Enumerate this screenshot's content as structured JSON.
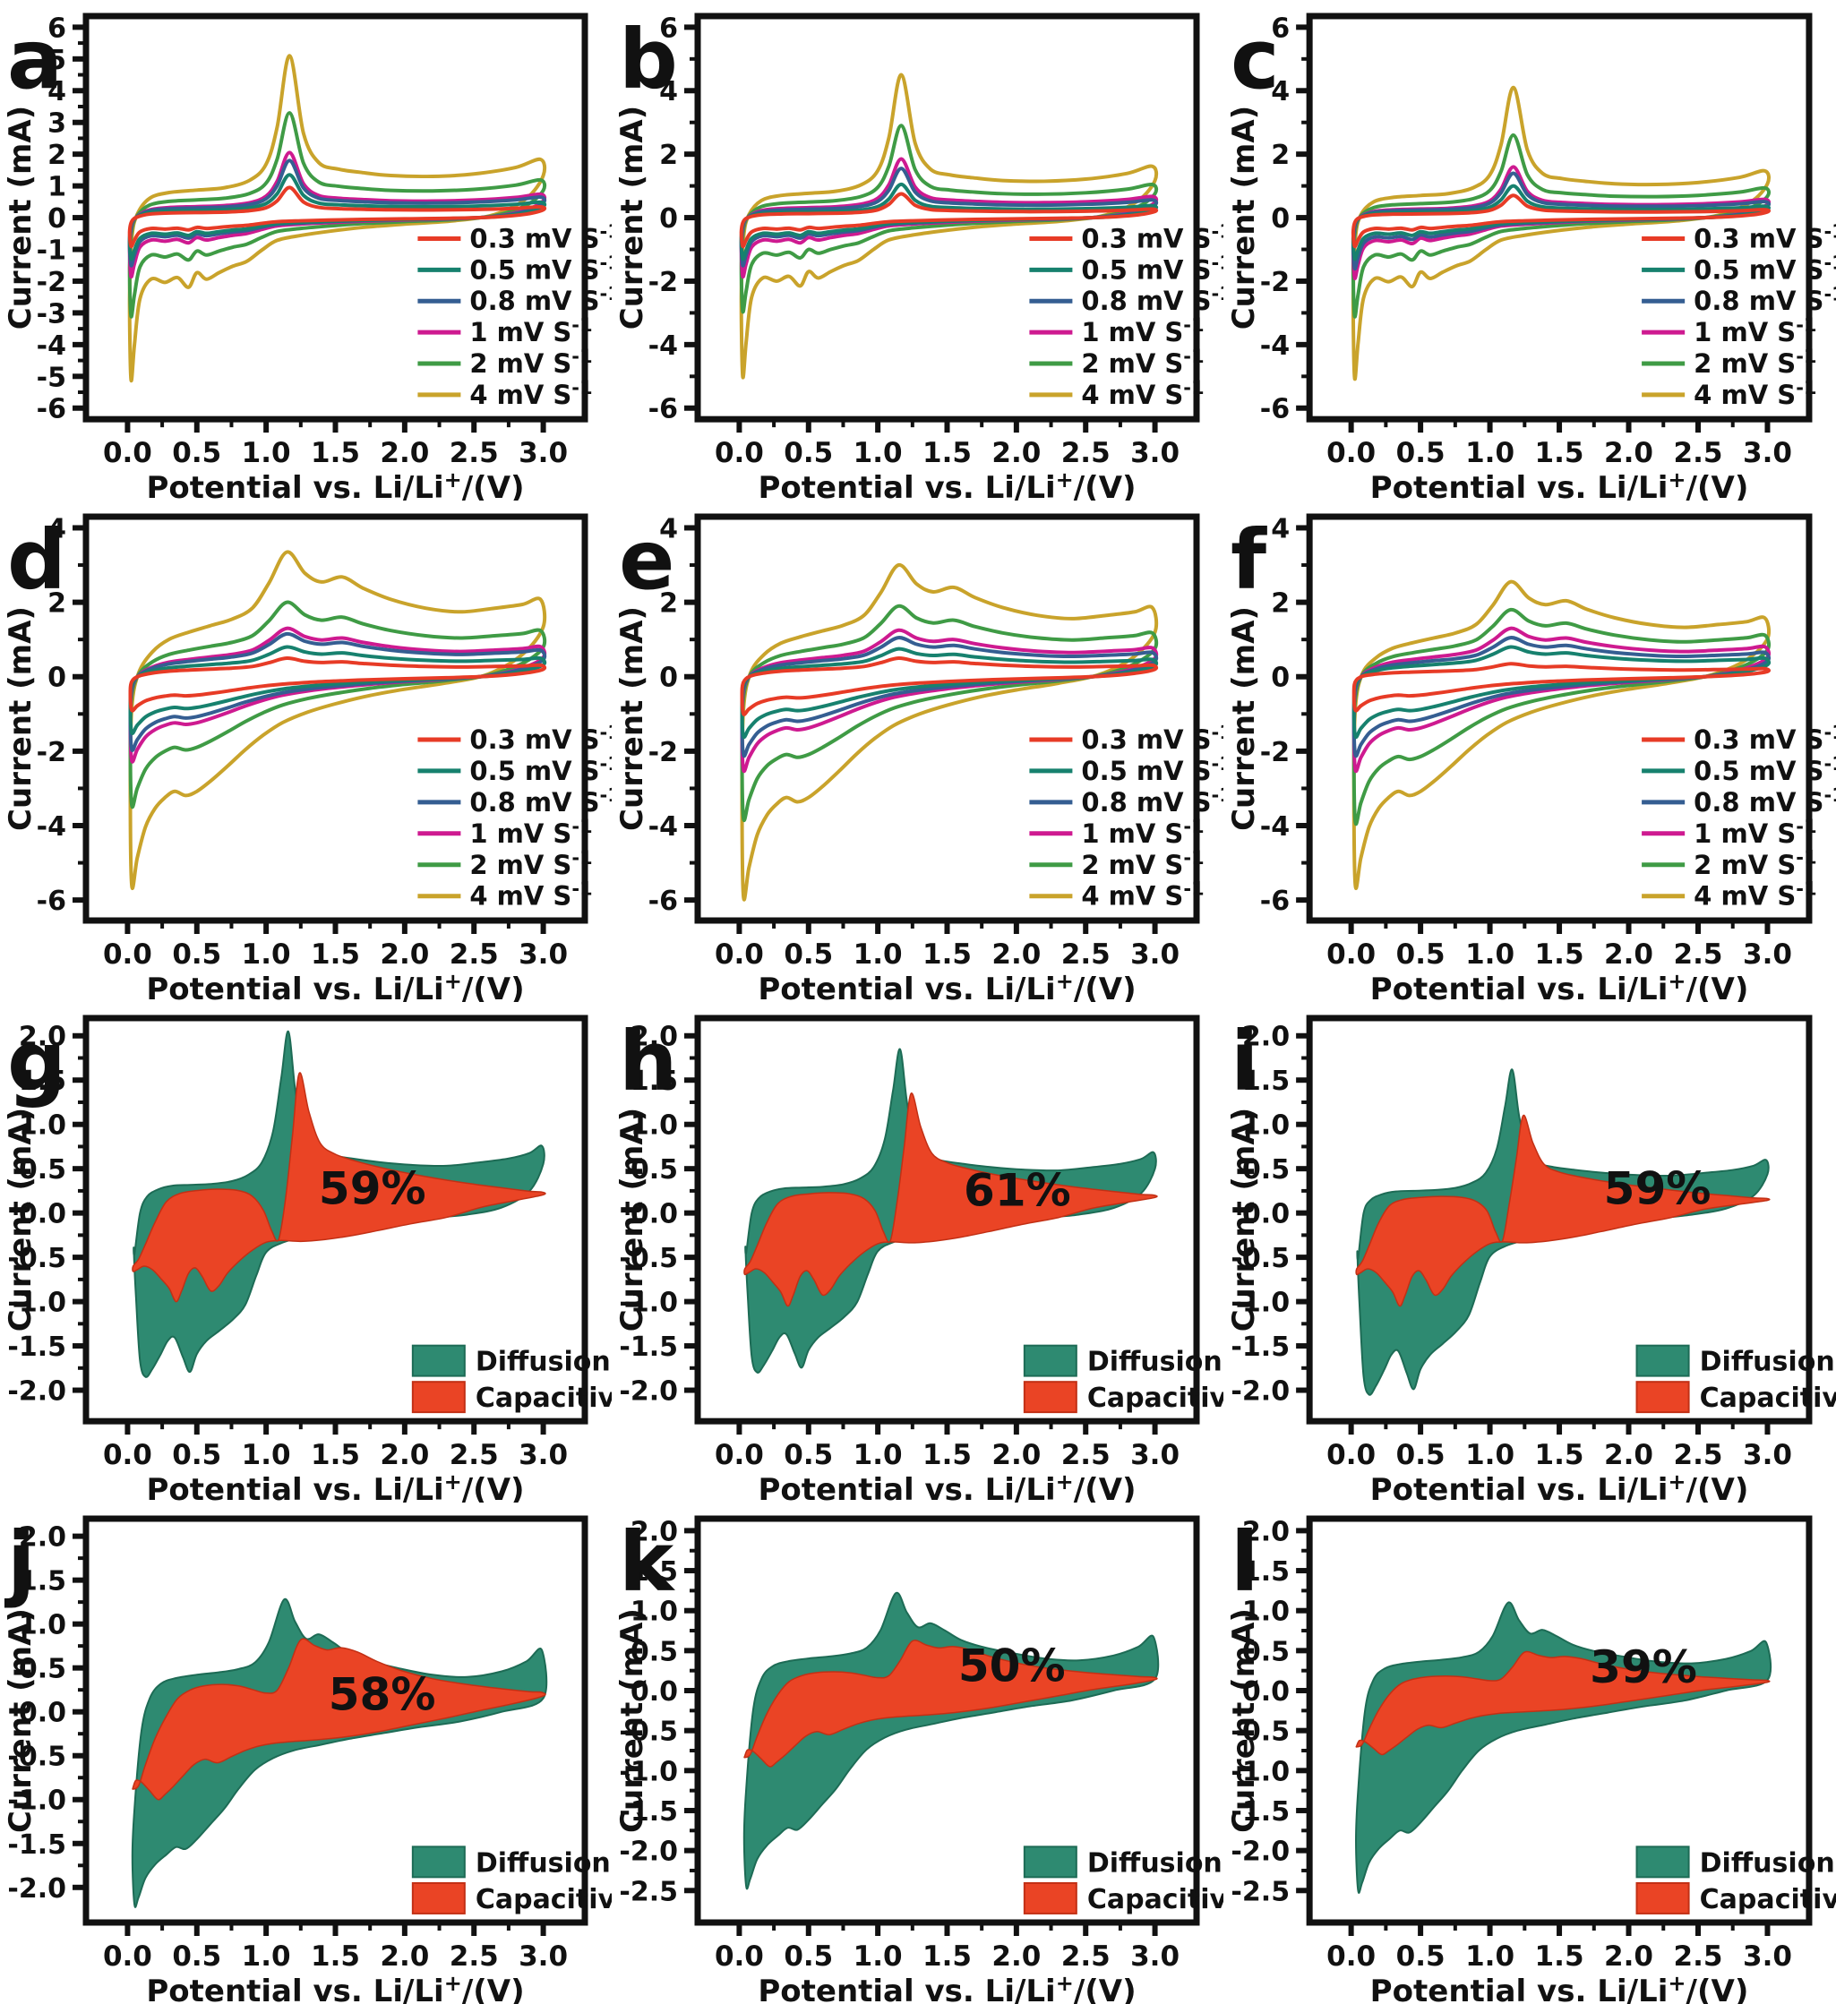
{
  "chart_data": {
    "type": "line",
    "axis": {
      "y_title": "Current (mA)",
      "x_title_parts": [
        "Potential vs. Li/Li",
        "+",
        "/(V)"
      ],
      "xlim": [
        0.0,
        3.0
      ]
    },
    "x_tick_labels": [
      "0.0",
      "0.5",
      "1.0",
      "1.5",
      "2.0",
      "2.5",
      "3.0"
    ],
    "scan_rate_legend_note": "scan rates in mV per second: 0.3, 0.5, 0.8, 1, 2, 4",
    "panels": [
      {
        "letter": "a",
        "type": "cv",
        "shape": "sharp",
        "ylim": [
          -6.35,
          6.35
        ],
        "y_ticks": [
          {
            "label": "6",
            "v": 6
          },
          {
            "label": "5",
            "v": 5
          },
          {
            "label": "4",
            "v": 4
          },
          {
            "label": "3",
            "v": 3
          },
          {
            "label": "2",
            "v": 2
          },
          {
            "label": "1",
            "v": 1
          },
          {
            "label": "0",
            "v": 0
          },
          {
            "label": "-1",
            "v": -1
          },
          {
            "label": "-2",
            "v": -2
          },
          {
            "label": "-3",
            "v": -3
          },
          {
            "label": "-4",
            "v": -4
          },
          {
            "label": "-5",
            "v": -5
          },
          {
            "label": "-6",
            "v": -6
          }
        ],
        "series": [
          {
            "label": "0.3 mV S",
            "exp": "-1",
            "color": "#e73b26",
            "peak": 0.95,
            "min": -0.9
          },
          {
            "label": "0.5 mV S",
            "exp": "-1",
            "color": "#17816e",
            "peak": 1.35,
            "min": -1.3
          },
          {
            "label": "0.8 mV S",
            "exp": "-1",
            "color": "#355e92",
            "peak": 1.8,
            "min": -1.5
          },
          {
            "label": "1 mV S",
            "exp": "-1",
            "color": "#ce1a90",
            "peak": 2.05,
            "min": -1.85
          },
          {
            "label": "2 mV S",
            "exp": "-1",
            "color": "#3f9b45",
            "peak": 3.3,
            "min": -3.1
          },
          {
            "label": "4 mV S",
            "exp": "-1",
            "color": "#c9a32b",
            "peak": 5.1,
            "min": -5.1
          }
        ]
      },
      {
        "letter": "b",
        "type": "cv",
        "shape": "sharp",
        "ylim": [
          -6.35,
          6.35
        ],
        "y_ticks": [
          {
            "label": "6",
            "v": 6
          },
          {
            "label": "4",
            "v": 4
          },
          {
            "label": "2",
            "v": 2
          },
          {
            "label": "0",
            "v": 0
          },
          {
            "label": "-2",
            "v": -2
          },
          {
            "label": "-4",
            "v": -4
          },
          {
            "label": "-6",
            "v": -6
          }
        ],
        "series": [
          {
            "label": "0.3 mV S",
            "exp": "-1",
            "color": "#e73b26",
            "peak": 0.75,
            "min": -0.9
          },
          {
            "label": "0.5 mV S",
            "exp": "-1",
            "color": "#17816e",
            "peak": 1.05,
            "min": -1.3
          },
          {
            "label": "0.8 mV S",
            "exp": "-1",
            "color": "#355e92",
            "peak": 1.55,
            "min": -1.5
          },
          {
            "label": "1 mV S",
            "exp": "-1",
            "color": "#ce1a90",
            "peak": 1.85,
            "min": -1.85
          },
          {
            "label": "2 mV S",
            "exp": "-1",
            "color": "#3f9b45",
            "peak": 2.9,
            "min": -2.95
          },
          {
            "label": "4 mV S",
            "exp": "-1",
            "color": "#c9a32b",
            "peak": 4.5,
            "min": -5.0
          }
        ]
      },
      {
        "letter": "c",
        "type": "cv",
        "shape": "sharp",
        "ylim": [
          -6.35,
          6.35
        ],
        "y_ticks": [
          {
            "label": "6",
            "v": 6
          },
          {
            "label": "4",
            "v": 4
          },
          {
            "label": "2",
            "v": 2
          },
          {
            "label": "0",
            "v": 0
          },
          {
            "label": "-2",
            "v": -2
          },
          {
            "label": "-4",
            "v": -4
          },
          {
            "label": "-6",
            "v": -6
          }
        ],
        "series": [
          {
            "label": "0.3 mV S",
            "exp": "-1",
            "color": "#e73b26",
            "peak": 0.7,
            "min": -0.9
          },
          {
            "label": "0.5 mV S",
            "exp": "-1",
            "color": "#17816e",
            "peak": 1.0,
            "min": -1.3
          },
          {
            "label": "0.8 mV S",
            "exp": "-1",
            "color": "#355e92",
            "peak": 1.4,
            "min": -1.6
          },
          {
            "label": "1 mV S",
            "exp": "-1",
            "color": "#ce1a90",
            "peak": 1.6,
            "min": -1.9
          },
          {
            "label": "2 mV S",
            "exp": "-1",
            "color": "#3f9b45",
            "peak": 2.6,
            "min": -3.1
          },
          {
            "label": "4 mV S",
            "exp": "-1",
            "color": "#c9a32b",
            "peak": 4.1,
            "min": -5.05
          }
        ]
      },
      {
        "letter": "d",
        "type": "cv",
        "shape": "broad",
        "ylim": [
          -6.55,
          4.3
        ],
        "y_ticks": [
          {
            "label": "4",
            "v": 4
          },
          {
            "label": "2",
            "v": 2
          },
          {
            "label": "0",
            "v": 0
          },
          {
            "label": "-2",
            "v": -2
          },
          {
            "label": "-4",
            "v": -4
          },
          {
            "label": "-6",
            "v": -6
          }
        ],
        "series": [
          {
            "label": "0.3 mV S",
            "exp": "-1",
            "color": "#e73b26",
            "peak": 0.5,
            "min": -0.9
          },
          {
            "label": "0.5 mV S",
            "exp": "-1",
            "color": "#17816e",
            "peak": 0.8,
            "min": -1.5
          },
          {
            "label": "0.8 mV S",
            "exp": "-1",
            "color": "#355e92",
            "peak": 1.15,
            "min": -1.95
          },
          {
            "label": "1 mV S",
            "exp": "-1",
            "color": "#ce1a90",
            "peak": 1.3,
            "min": -2.25
          },
          {
            "label": "2 mV S",
            "exp": "-1",
            "color": "#3f9b45",
            "peak": 2.0,
            "min": -3.45
          },
          {
            "label": "4 mV S",
            "exp": "-1",
            "color": "#c9a32b",
            "peak": 3.35,
            "min": -5.6
          }
        ]
      },
      {
        "letter": "e",
        "type": "cv",
        "shape": "broad",
        "ylim": [
          -6.55,
          4.3
        ],
        "y_ticks": [
          {
            "label": "4",
            "v": 4
          },
          {
            "label": "2",
            "v": 2
          },
          {
            "label": "0",
            "v": 0
          },
          {
            "label": "-2",
            "v": -2
          },
          {
            "label": "-4",
            "v": -4
          },
          {
            "label": "-6",
            "v": -6
          }
        ],
        "series": [
          {
            "label": "0.3 mV S",
            "exp": "-1",
            "color": "#e73b26",
            "peak": 0.5,
            "min": -1.0
          },
          {
            "label": "0.5 mV S",
            "exp": "-1",
            "color": "#17816e",
            "peak": 0.75,
            "min": -1.6
          },
          {
            "label": "0.8 mV S",
            "exp": "-1",
            "color": "#355e92",
            "peak": 1.05,
            "min": -2.1
          },
          {
            "label": "1 mV S",
            "exp": "-1",
            "color": "#ce1a90",
            "peak": 1.25,
            "min": -2.5
          },
          {
            "label": "2 mV S",
            "exp": "-1",
            "color": "#3f9b45",
            "peak": 1.9,
            "min": -3.8
          },
          {
            "label": "4 mV S",
            "exp": "-1",
            "color": "#c9a32b",
            "peak": 3.0,
            "min": -5.9
          }
        ]
      },
      {
        "letter": "f",
        "type": "cv",
        "shape": "broad",
        "ylim": [
          -6.55,
          4.3
        ],
        "y_ticks": [
          {
            "label": "4",
            "v": 4
          },
          {
            "label": "2",
            "v": 2
          },
          {
            "label": "0",
            "v": 0
          },
          {
            "label": "-2",
            "v": -2
          },
          {
            "label": "-4",
            "v": -4
          },
          {
            "label": "-6",
            "v": -6
          }
        ],
        "series": [
          {
            "label": "0.3 mV S",
            "exp": "-1",
            "color": "#e73b26",
            "peak": 0.35,
            "min": -0.9
          },
          {
            "label": "0.5 mV S",
            "exp": "-1",
            "color": "#17816e",
            "peak": 0.8,
            "min": -1.6
          },
          {
            "label": "0.8 mV S",
            "exp": "-1",
            "color": "#355e92",
            "peak": 1.05,
            "min": -2.1
          },
          {
            "label": "1 mV S",
            "exp": "-1",
            "color": "#ce1a90",
            "peak": 1.3,
            "min": -2.5
          },
          {
            "label": "2 mV S",
            "exp": "-1",
            "color": "#3f9b45",
            "peak": 1.8,
            "min": -3.9
          },
          {
            "label": "4 mV S",
            "exp": "-1",
            "color": "#c9a32b",
            "peak": 2.55,
            "min": -5.6
          }
        ]
      },
      {
        "letter": "g",
        "type": "fill",
        "shape": "sharp",
        "ylim": [
          -2.35,
          2.2
        ],
        "y_ticks": [
          {
            "label": "2.0",
            "v": 2.0
          },
          {
            "label": "1.5",
            "v": 1.5
          },
          {
            "label": "1.0",
            "v": 1.0
          },
          {
            "label": "0.5",
            "v": 0.5
          },
          {
            "label": "0.0",
            "v": 0.0
          },
          {
            "label": "-0.5",
            "v": -0.5
          },
          {
            "label": "-1.0",
            "v": -1.0
          },
          {
            "label": "-1.5",
            "v": -1.5
          },
          {
            "label": "-2.0",
            "v": -2.0
          }
        ],
        "diffusion": {
          "label": "Diffusion",
          "color": "#2e8a71",
          "border": "#1d6b55",
          "peak": 2.05,
          "min": -1.85
        },
        "capacitive": {
          "label": "Capacitive",
          "color": "#ea4425",
          "border": "#c23015",
          "peak": 1.58,
          "min": -1.0
        },
        "pct": {
          "text": "59%",
          "x": 1.38,
          "y": 0.1
        }
      },
      {
        "letter": "h",
        "type": "fill",
        "shape": "sharp",
        "ylim": [
          -2.35,
          2.2
        ],
        "y_ticks": [
          {
            "label": "2.0",
            "v": 2.0
          },
          {
            "label": "1.5",
            "v": 1.5
          },
          {
            "label": "1.0",
            "v": 1.0
          },
          {
            "label": "0.5",
            "v": 0.5
          },
          {
            "label": "0.0",
            "v": 0.0
          },
          {
            "label": "-0.5",
            "v": -0.5
          },
          {
            "label": "-1.0",
            "v": -1.0
          },
          {
            "label": "-1.5",
            "v": -1.5
          },
          {
            "label": "-2.0",
            "v": -2.0
          }
        ],
        "diffusion": {
          "label": "Diffusion",
          "color": "#2e8a71",
          "border": "#1d6b55",
          "peak": 1.85,
          "min": -1.8
        },
        "capacitive": {
          "label": "Capacitive",
          "color": "#ea4425",
          "border": "#c23015",
          "peak": 1.35,
          "min": -1.05
        },
        "pct": {
          "text": "61%",
          "x": 1.62,
          "y": 0.08
        }
      },
      {
        "letter": "i",
        "type": "fill",
        "shape": "sharp",
        "ylim": [
          -2.35,
          2.2
        ],
        "y_ticks": [
          {
            "label": "2.0",
            "v": 2.0
          },
          {
            "label": "1.5",
            "v": 1.5
          },
          {
            "label": "1.0",
            "v": 1.0
          },
          {
            "label": "0.5",
            "v": 0.5
          },
          {
            "label": "0.0",
            "v": 0.0
          },
          {
            "label": "-0.5",
            "v": -0.5
          },
          {
            "label": "-1.0",
            "v": -1.0
          },
          {
            "label": "-1.5",
            "v": -1.5
          },
          {
            "label": "-2.0",
            "v": -2.0
          }
        ],
        "diffusion": {
          "label": "Diffusion",
          "color": "#2e8a71",
          "border": "#1d6b55",
          "peak": 1.62,
          "min": -2.05
        },
        "capacitive": {
          "label": "Capacitive",
          "color": "#ea4425",
          "border": "#c23015",
          "peak": 1.1,
          "min": -1.05
        },
        "pct": {
          "text": "59%",
          "x": 1.82,
          "y": 0.1
        }
      },
      {
        "letter": "j",
        "type": "fill",
        "shape": "broad",
        "ylim": [
          -2.4,
          2.2
        ],
        "y_ticks": [
          {
            "label": "2.0",
            "v": 2.0
          },
          {
            "label": "1.5",
            "v": 1.5
          },
          {
            "label": "1.0",
            "v": 1.0
          },
          {
            "label": "0.5",
            "v": 0.5
          },
          {
            "label": "0.0",
            "v": 0.0
          },
          {
            "label": "-0.5",
            "v": -0.5
          },
          {
            "label": "-1.0",
            "v": -1.0
          },
          {
            "label": "-1.5",
            "v": -1.5
          },
          {
            "label": "-2.0",
            "v": -2.0
          }
        ],
        "diffusion": {
          "label": "Diffusion",
          "color": "#2e8a71",
          "border": "#1d6b55",
          "peak": 1.28,
          "min": -2.2
        },
        "capacitive": {
          "label": "Capacitive",
          "color": "#ea4425",
          "border": "#c23015",
          "peak": 0.82,
          "min": -1.0
        },
        "pct": {
          "text": "58%",
          "x": 1.45,
          "y": 0.02
        }
      },
      {
        "letter": "k",
        "type": "fill",
        "shape": "broad",
        "ylim": [
          -2.9,
          2.15
        ],
        "y_ticks": [
          {
            "label": "2.0",
            "v": 2.0
          },
          {
            "label": "1.5",
            "v": 1.5
          },
          {
            "label": "1.0",
            "v": 1.0
          },
          {
            "label": "0.5",
            "v": 0.5
          },
          {
            "label": "0.0",
            "v": 0.0
          },
          {
            "label": "-0.5",
            "v": -0.5
          },
          {
            "label": "-1.0",
            "v": -1.0
          },
          {
            "label": "-1.5",
            "v": -1.5
          },
          {
            "label": "-2.0",
            "v": -2.0
          },
          {
            "label": "-2.5",
            "v": -2.5
          }
        ],
        "diffusion": {
          "label": "Diffusion",
          "color": "#2e8a71",
          "border": "#1d6b55",
          "peak": 1.22,
          "min": -2.45
        },
        "capacitive": {
          "label": "Capacitive",
          "color": "#ea4425",
          "border": "#c23015",
          "peak": 0.62,
          "min": -0.95
        },
        "pct": {
          "text": "50%",
          "x": 1.58,
          "y": 0.12
        }
      },
      {
        "letter": "l",
        "type": "fill",
        "shape": "broad",
        "ylim": [
          -2.9,
          2.15
        ],
        "y_ticks": [
          {
            "label": "2.0",
            "v": 2.0
          },
          {
            "label": "1.5",
            "v": 1.5
          },
          {
            "label": "1.0",
            "v": 1.0
          },
          {
            "label": "0.5",
            "v": 0.5
          },
          {
            "label": "0.0",
            "v": 0.0
          },
          {
            "label": "-0.5",
            "v": -0.5
          },
          {
            "label": "-1.0",
            "v": -1.0
          },
          {
            "label": "-1.5",
            "v": -1.5
          },
          {
            "label": "-2.0",
            "v": -2.0
          },
          {
            "label": "-2.5",
            "v": -2.5
          }
        ],
        "diffusion": {
          "label": "Diffusion",
          "color": "#2e8a71",
          "border": "#1d6b55",
          "peak": 1.1,
          "min": -2.5
        },
        "capacitive": {
          "label": "Capacitive",
          "color": "#ea4425",
          "border": "#c23015",
          "peak": 0.48,
          "min": -0.8
        },
        "pct": {
          "text": "39%",
          "x": 1.72,
          "y": 0.1
        }
      }
    ]
  }
}
